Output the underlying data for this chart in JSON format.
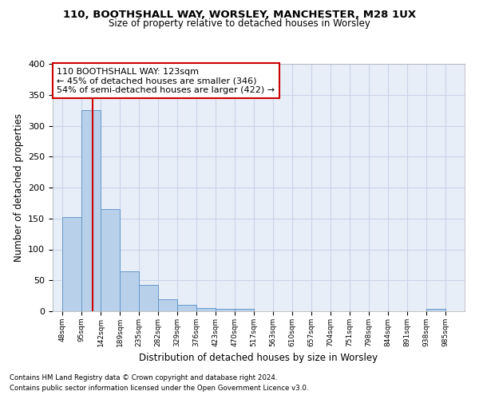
{
  "title1": "110, BOOTHSHALL WAY, WORSLEY, MANCHESTER, M28 1UX",
  "title2": "Size of property relative to detached houses in Worsley",
  "xlabel": "Distribution of detached houses by size in Worsley",
  "ylabel": "Number of detached properties",
  "property_label": "110 BOOTHSHALL WAY: 123sqm",
  "annotation_line1": "← 45% of detached houses are smaller (346)",
  "annotation_line2": "54% of semi-detached houses are larger (422) →",
  "bin_edges": [
    48,
    95,
    142,
    189,
    235,
    282,
    329,
    376,
    423,
    470,
    517,
    563,
    610,
    657,
    704,
    751,
    798,
    844,
    891,
    938,
    985
  ],
  "bar_heights": [
    152,
    325,
    165,
    65,
    43,
    20,
    10,
    5,
    4,
    4,
    0,
    0,
    0,
    0,
    0,
    0,
    0,
    0,
    0,
    4
  ],
  "bar_color": "#b8d0ea",
  "bar_edgecolor": "#6699cc",
  "vline_x": 123,
  "vline_color": "#cc0000",
  "grid_color": "#c8d4e8",
  "bg_color": "#e8eef8",
  "annotation_bg": "#ffffff",
  "annotation_border": "#cc0000",
  "footer_line1": "Contains HM Land Registry data © Crown copyright and database right 2024.",
  "footer_line2": "Contains public sector information licensed under the Open Government Licence v3.0.",
  "tick_labels": [
    "48sqm",
    "95sqm",
    "142sqm",
    "189sqm",
    "235sqm",
    "282sqm",
    "329sqm",
    "376sqm",
    "423sqm",
    "470sqm",
    "517sqm",
    "563sqm",
    "610sqm",
    "657sqm",
    "704sqm",
    "751sqm",
    "798sqm",
    "844sqm",
    "891sqm",
    "938sqm",
    "985sqm"
  ],
  "ylim": [
    0,
    400
  ],
  "yticks": [
    0,
    50,
    100,
    150,
    200,
    250,
    300,
    350,
    400
  ]
}
